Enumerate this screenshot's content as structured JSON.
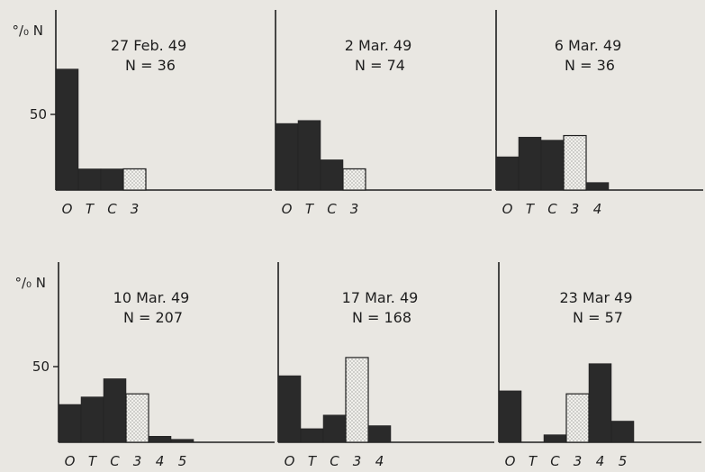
{
  "figure": {
    "y_axis_label": "°/₀ N",
    "y_tick": "50"
  },
  "chart_data": [
    {
      "type": "bar",
      "title": "27 Feb. 49",
      "n_label": "N = 36",
      "categories": [
        "O",
        "T",
        "C",
        "3"
      ],
      "values": [
        80,
        14,
        14,
        14
      ],
      "shaded": [
        false,
        false,
        false,
        true
      ],
      "ylabel": "°/₀ N",
      "yticks": [
        50
      ],
      "ylim": [
        0,
        95
      ]
    },
    {
      "type": "bar",
      "title": "2 Mar. 49",
      "n_label": "N = 74",
      "categories": [
        "O",
        "T",
        "C",
        "3"
      ],
      "values": [
        44,
        46,
        20,
        14
      ],
      "shaded": [
        false,
        false,
        false,
        true
      ],
      "ylim": [
        0,
        95
      ]
    },
    {
      "type": "bar",
      "title": "6 Mar. 49",
      "n_label": "N = 36",
      "categories": [
        "O",
        "T",
        "C",
        "3",
        "4"
      ],
      "values": [
        22,
        35,
        33,
        36,
        5
      ],
      "shaded": [
        false,
        false,
        false,
        true,
        false
      ],
      "ylim": [
        0,
        95
      ]
    },
    {
      "type": "bar",
      "title": "10 Mar. 49",
      "n_label": "N = 207",
      "categories": [
        "O",
        "T",
        "C",
        "3",
        "4",
        "5"
      ],
      "values": [
        25,
        30,
        42,
        32,
        4,
        2
      ],
      "shaded": [
        false,
        false,
        false,
        true,
        false,
        false
      ],
      "ylabel": "°/₀ N",
      "yticks": [
        50
      ],
      "ylim": [
        0,
        95
      ]
    },
    {
      "type": "bar",
      "title": "17 Mar. 49",
      "n_label": "N = 168",
      "categories": [
        "O",
        "T",
        "C",
        "3",
        "4"
      ],
      "values": [
        44,
        9,
        18,
        56,
        11
      ],
      "shaded": [
        false,
        false,
        false,
        true,
        false
      ],
      "ylim": [
        0,
        95
      ]
    },
    {
      "type": "bar",
      "title": "23 Mar 49",
      "n_label": "N = 57",
      "categories": [
        "O",
        "T",
        "C",
        "3",
        "4",
        "5"
      ],
      "values": [
        34,
        0,
        5,
        32,
        52,
        14
      ],
      "shaded": [
        false,
        false,
        false,
        true,
        false,
        false
      ],
      "ylim": [
        0,
        95
      ]
    }
  ]
}
